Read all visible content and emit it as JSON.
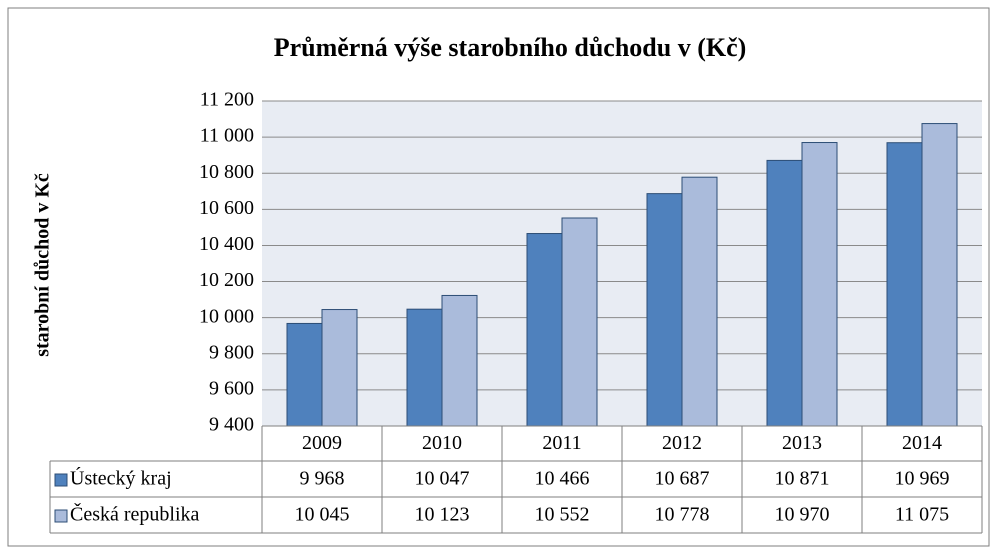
{
  "chart_data": {
    "type": "bar",
    "title": "Průměrná výše starobního důchodu v (Kč)",
    "y_label": "starobní důchod v Kč",
    "categories": [
      "2009",
      "2010",
      "2011",
      "2012",
      "2013",
      "2014"
    ],
    "series": [
      {
        "name": "Ústecký kraj",
        "color": "#4f81bd",
        "values": [
          9968,
          10047,
          10466,
          10687,
          10871,
          10969
        ],
        "value_labels": [
          "9 968",
          "10 047",
          "10 466",
          "10 687",
          "10 871",
          "10 969"
        ]
      },
      {
        "name": "Česká republika",
        "color": "#aabbdb",
        "values": [
          10045,
          10123,
          10552,
          10778,
          10970,
          11075
        ],
        "value_labels": [
          "10 045",
          "10 123",
          "10 552",
          "10 778",
          "10 970",
          "11 075"
        ]
      }
    ],
    "ylim": [
      9400,
      11200
    ],
    "yticks": [
      {
        "value": 9400,
        "label": "9 400"
      },
      {
        "value": 9600,
        "label": "9 600"
      },
      {
        "value": 9800,
        "label": "9 800"
      },
      {
        "value": 10000,
        "label": "10 000"
      },
      {
        "value": 10200,
        "label": "10 200"
      },
      {
        "value": 10400,
        "label": "10 400"
      },
      {
        "value": 10600,
        "label": "10 600"
      },
      {
        "value": 10800,
        "label": "10 800"
      },
      {
        "value": 11000,
        "label": "11 000"
      },
      {
        "value": 11200,
        "label": "11 200"
      }
    ],
    "grid": true
  }
}
